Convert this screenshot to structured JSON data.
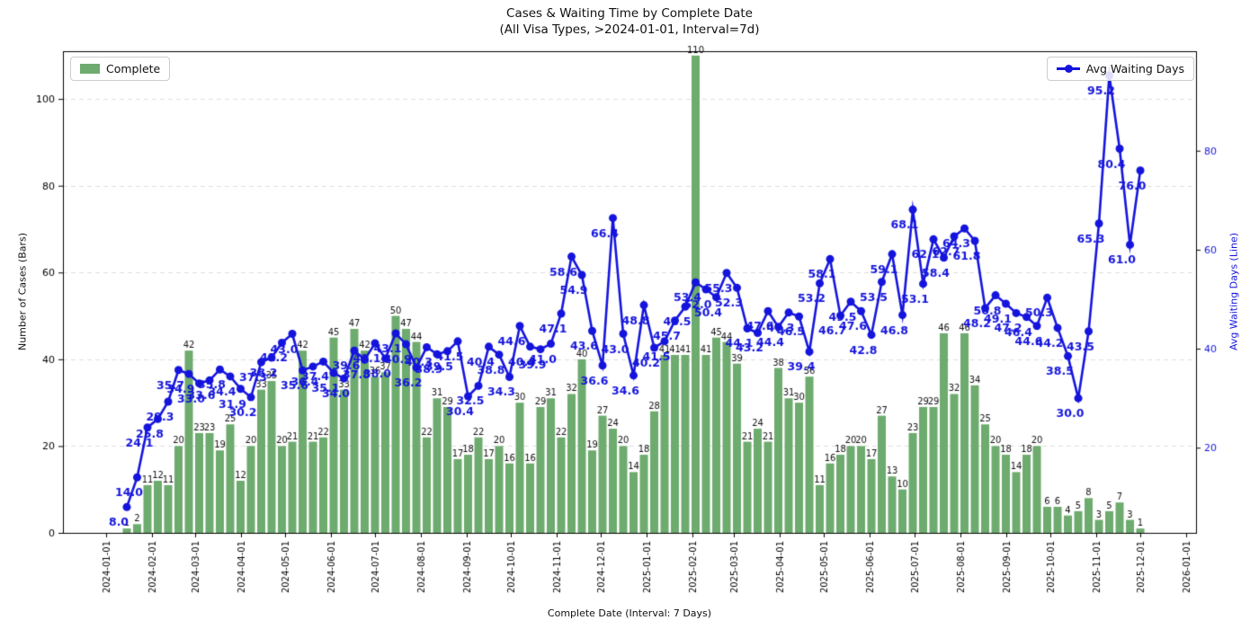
{
  "title": "Cases & Waiting Time by Complete Date",
  "subtitle": "(All Visa Types, >2024-01-01, Interval=7d)",
  "legend_left": {
    "label": "Complete"
  },
  "legend_right": {
    "label": "Avg Waiting Days"
  },
  "colors": {
    "bar": "#6dab6e",
    "line": "#1414dd",
    "grid": "#dcdcdc",
    "axis": "#000000",
    "bar_label": "#111111",
    "right_axis_text": "#1414dd"
  },
  "chart_data": {
    "type": "bar",
    "subtype": "combo-bar-line",
    "title": "Cases & Waiting Time by Complete Date",
    "subtitle": "(All Visa Types, >2024-01-01, Interval=7d)",
    "start_date": "2024-01-15",
    "interval_days": 7,
    "xlabel": "Complete Date (Interval: 7 Days)",
    "ylabel_left": "Number of Cases (Bars)",
    "ylabel_right": "Avg Waiting Days (Line)",
    "y_left_ticks": [
      0,
      20,
      40,
      60,
      80,
      100
    ],
    "y_left_lim": [
      0,
      111
    ],
    "y_right_ticks": [
      20,
      40,
      60,
      80
    ],
    "y_right_lim": [
      2.8,
      100.1
    ],
    "grid": "horizontal-dashed",
    "legend_position": "upper-left / upper-right",
    "x_tick_labels": [
      "2024-01-01",
      "2024-02-01",
      "2024-03-01",
      "2024-04-01",
      "2024-05-01",
      "2024-06-01",
      "2024-07-01",
      "2024-08-01",
      "2024-09-01",
      "2024-10-01",
      "2024-11-01",
      "2024-12-01",
      "2025-01-01",
      "2025-02-01",
      "2025-03-01",
      "2025-04-01",
      "2025-05-01",
      "2025-06-01",
      "2025-07-01",
      "2025-08-01",
      "2025-09-01",
      "2025-10-01",
      "2025-11-01",
      "2025-12-01",
      "2026-01-01"
    ],
    "series": [
      {
        "name": "Complete",
        "type": "bar",
        "values": [
          1,
          2,
          11,
          12,
          11,
          20,
          42,
          23,
          23,
          19,
          25,
          12,
          20,
          33,
          35,
          20,
          21,
          42,
          21,
          22,
          45,
          33,
          47,
          42,
          36,
          37,
          50,
          47,
          44,
          22,
          31,
          29,
          17,
          18,
          22,
          17,
          20,
          16,
          30,
          16,
          29,
          31,
          22,
          32,
          40,
          19,
          27,
          24,
          20,
          14,
          18,
          28,
          41,
          41,
          41,
          110,
          41,
          45,
          44,
          39,
          21,
          24,
          21,
          38,
          31,
          30,
          36,
          11,
          16,
          18,
          20,
          20,
          17,
          27,
          13,
          10,
          23,
          29,
          29,
          46,
          32,
          46,
          34,
          25,
          20,
          18,
          14,
          18,
          20,
          6,
          6,
          4,
          5,
          8,
          3,
          5,
          7,
          3,
          1
        ]
      },
      {
        "name": "Avg Waiting Days",
        "type": "line",
        "values": [
          8.0,
          14.0,
          24.1,
          25.8,
          29.3,
          35.7,
          34.9,
          33.0,
          33.6,
          35.8,
          34.4,
          31.9,
          30.2,
          37.3,
          38.2,
          41.2,
          43.0,
          35.6,
          36.4,
          37.4,
          35.1,
          34.0,
          39.6,
          37.8,
          41.1,
          38.0,
          43.1,
          40.9,
          36.2,
          40.3,
          38.9,
          39.5,
          41.5,
          30.4,
          32.5,
          40.4,
          38.8,
          34.3,
          44.6,
          40.4,
          39.9,
          41.0,
          47.1,
          58.6,
          54.9,
          43.6,
          36.6,
          66.4,
          43.0,
          34.6,
          48.8,
          40.2,
          41.5,
          45.7,
          48.5,
          53.4,
          52.0,
          50.4,
          55.3,
          52.3,
          44.1,
          43.2,
          47.6,
          44.4,
          47.3,
          46.5,
          39.4,
          53.2,
          58.1,
          46.7,
          49.5,
          47.6,
          42.8,
          53.5,
          59.1,
          46.8,
          68.1,
          53.1,
          62.1,
          58.4,
          62.7,
          64.3,
          61.8,
          48.2,
          50.8,
          49.1,
          47.2,
          46.4,
          44.6,
          50.3,
          44.2,
          38.5,
          30.0,
          43.5,
          65.3,
          95.2,
          80.4,
          61.0,
          76.0
        ]
      }
    ]
  }
}
